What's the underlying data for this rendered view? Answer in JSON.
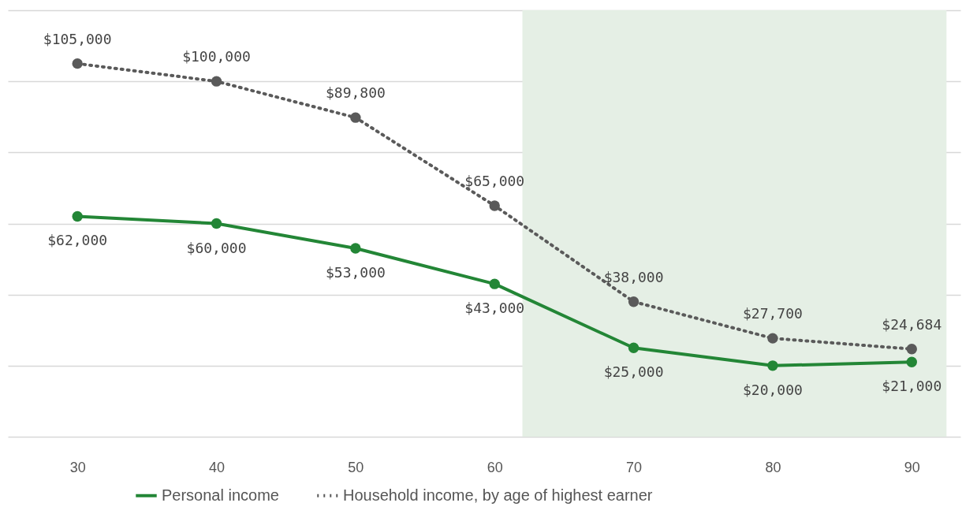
{
  "chart_data": {
    "type": "line",
    "x": [
      30,
      40,
      50,
      60,
      70,
      80,
      90
    ],
    "series": [
      {
        "name": "Personal income",
        "color": "#238636",
        "line_style": "solid",
        "values": [
          62000,
          60000,
          53000,
          43000,
          25000,
          20000,
          21000
        ],
        "value_labels": [
          "$62,000",
          "$60,000",
          "$53,000",
          "$43,000",
          "$25,000",
          "$20,000",
          "$21,000"
        ]
      },
      {
        "name": "Household income, by age of highest earner",
        "color": "#5a5a5a",
        "line_style": "dotted",
        "values": [
          105000,
          100000,
          89800,
          65000,
          38000,
          27700,
          24684
        ],
        "value_labels": [
          "$105,000",
          "$100,000",
          "$89,800",
          "$65,000",
          "$38,000",
          "$27,700",
          "$24,684"
        ]
      }
    ],
    "xlim": [
      25,
      93.5
    ],
    "xticks": [
      30,
      40,
      50,
      60,
      70,
      80,
      90
    ],
    "ylim": [
      0,
      120000
    ],
    "yticks": [
      {
        "value": 0,
        "label": null
      },
      {
        "value": 20000,
        "label": null
      },
      {
        "value": 40000,
        "label": null
      },
      {
        "value": 60000,
        "label": null
      },
      {
        "value": 80000,
        "label": null
      },
      {
        "value": 100000,
        "label": null
      },
      {
        "value": 120000,
        "label": null
      }
    ],
    "grid": "y",
    "marker": "circle",
    "legend": "bottom",
    "bands": [
      {
        "axis": "x",
        "from": 62,
        "to": 92.5,
        "color": "#e5efe5"
      }
    ]
  }
}
